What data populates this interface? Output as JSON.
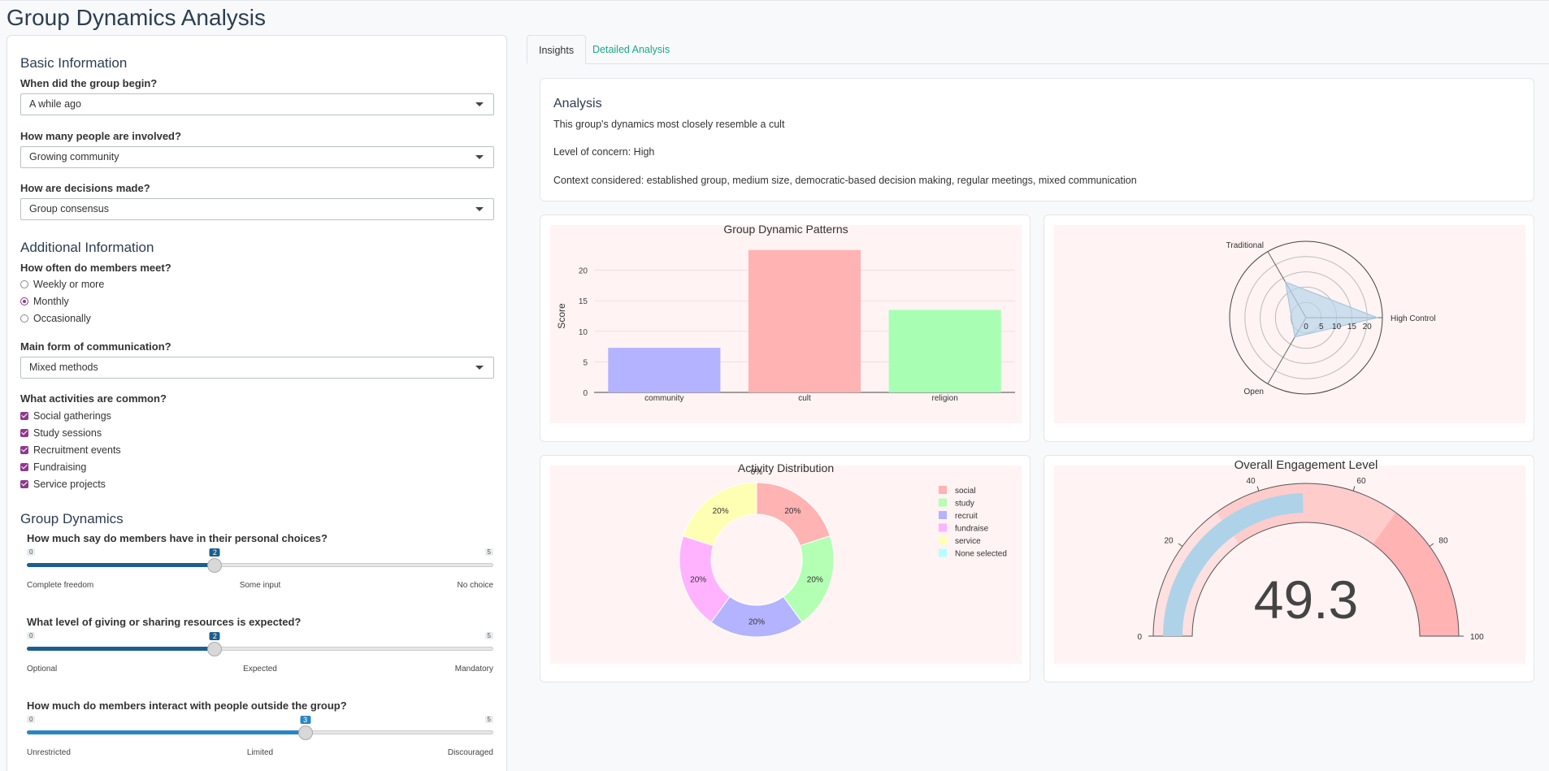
{
  "page_title": "Group Dynamics Analysis",
  "sidebar": {
    "basic_heading": "Basic Information",
    "q_begin": "When did the group begin?",
    "sel_begin": "A while ago",
    "q_people": "How many people are involved?",
    "sel_people": "Growing community",
    "q_decisions": "How are decisions made?",
    "sel_decisions": "Group consensus",
    "additional_heading": "Additional Information",
    "q_meet": "How often do members meet?",
    "meet_options": [
      "Weekly or more",
      "Monthly",
      "Occasionally"
    ],
    "meet_selected": "Monthly",
    "q_comm": "Main form of communication?",
    "sel_comm": "Mixed methods",
    "q_activities": "What activities are common?",
    "activities": [
      "Social gatherings",
      "Study sessions",
      "Recruitment events",
      "Fundraising",
      "Service projects"
    ],
    "dynamics_heading": "Group Dynamics",
    "sliders": [
      {
        "question": "How much say do members have in their personal choices?",
        "min": "0",
        "max": "5",
        "value": 2,
        "value_label": "2",
        "labels": [
          "Complete freedom",
          "Some input",
          "No choice"
        ],
        "color": "#1d5f8c"
      },
      {
        "question": "What level of giving or sharing resources is expected?",
        "min": "0",
        "max": "5",
        "value": 2,
        "value_label": "2",
        "labels": [
          "Optional",
          "Expected",
          "Mandatory"
        ],
        "color": "#1d5f8c"
      },
      {
        "question": "How much do members interact with people outside the group?",
        "min": "0",
        "max": "5",
        "value": 3,
        "value_label": "3",
        "labels": [
          "Unrestricted",
          "Limited",
          "Discouraged"
        ],
        "color": "#2a86c4"
      }
    ]
  },
  "tabs": [
    {
      "label": "Insights",
      "active": true
    },
    {
      "label": "Detailed Analysis",
      "active": false
    }
  ],
  "analysis": {
    "heading": "Analysis",
    "line1": "This group's dynamics most closely resemble a cult",
    "line2": "Level of concern: High",
    "line3": "Context considered: established group, medium size, democratic-based decision making, regular meetings, mixed communication"
  },
  "chart_data": [
    {
      "type": "bar",
      "title": "Group Dynamic Patterns",
      "ylabel": "Score",
      "categories": [
        "community",
        "cult",
        "religion"
      ],
      "values": [
        7.3,
        23.3,
        13.5
      ],
      "colors": [
        "#b3b3ff",
        "#ffb3b3",
        "#a8ffb3"
      ],
      "ylim": [
        0,
        25
      ],
      "yticks": [
        0,
        5,
        10,
        15,
        20
      ]
    },
    {
      "type": "radar",
      "categories": [
        "High Control",
        "Traditional",
        "Open"
      ],
      "values": [
        23.3,
        13.5,
        7.3
      ],
      "radial_ticks": [
        0,
        5,
        10,
        15,
        20
      ],
      "rmax": 25,
      "fill": "#b8d4ea"
    },
    {
      "type": "pie",
      "title": "Activity Distribution",
      "labels": [
        "social",
        "study",
        "recruit",
        "fundraise",
        "service",
        "None selected"
      ],
      "values": [
        20,
        20,
        20,
        20,
        20,
        0
      ],
      "text": [
        "20%",
        "20%",
        "20%",
        "20%",
        "20%",
        "0%"
      ],
      "colors": [
        "#ffb3b3",
        "#b3ffb3",
        "#b3b3ff",
        "#ffb3ff",
        "#ffffb3",
        "#b3ffff"
      ],
      "hole": true
    },
    {
      "type": "gauge",
      "title": "Overall Engagement Level",
      "value": 49.3,
      "value_label": "49.3",
      "range": [
        0,
        100
      ],
      "ticks": [
        0,
        20,
        40,
        60,
        80,
        100
      ],
      "bar_color": "#aed3e8",
      "steps": [
        {
          "range": [
            0,
            30
          ],
          "color": "#ffe0e0"
        },
        {
          "range": [
            30,
            70
          ],
          "color": "#ffcccc"
        },
        {
          "range": [
            70,
            100
          ],
          "color": "#ffb3b3"
        }
      ]
    }
  ]
}
